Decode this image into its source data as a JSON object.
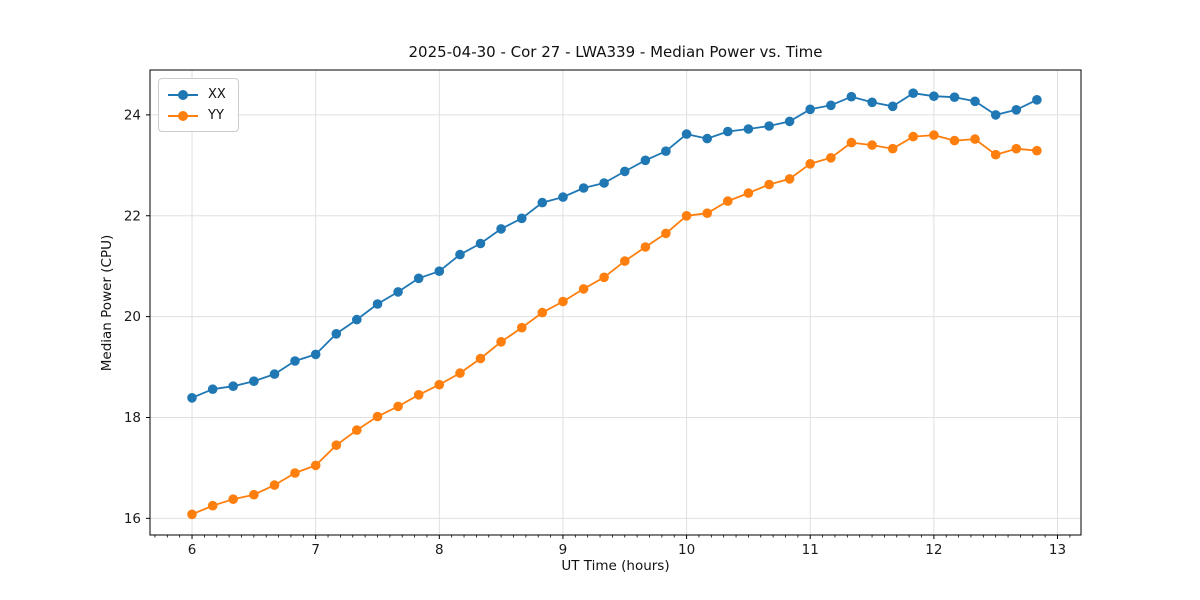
{
  "chart_data": {
    "type": "line",
    "title": "2025-04-30 - Cor 27 - LWA339 - Median Power vs. Time",
    "xlabel": "UT Time (hours)",
    "ylabel": "Median Power (CPU)",
    "xlim": [
      5.66,
      13.19
    ],
    "ylim": [
      15.67,
      24.89
    ],
    "xticks": [
      6,
      7,
      8,
      9,
      10,
      11,
      12,
      13
    ],
    "yticks": [
      16,
      18,
      20,
      22,
      24
    ],
    "minor_xtick_step": 0.1,
    "grid": true,
    "grid_color": "#e0e0e0",
    "legend_position": "upper left",
    "marker": "circle",
    "x": [
      6.0,
      6.167,
      6.333,
      6.5,
      6.667,
      6.833,
      7.0,
      7.167,
      7.333,
      7.5,
      7.667,
      7.833,
      8.0,
      8.167,
      8.333,
      8.5,
      8.667,
      8.833,
      9.0,
      9.167,
      9.333,
      9.5,
      9.667,
      9.833,
      10.0,
      10.167,
      10.333,
      10.5,
      10.667,
      10.833,
      11.0,
      11.167,
      11.333,
      11.5,
      11.667,
      11.833,
      12.0,
      12.167,
      12.333,
      12.5,
      12.667,
      12.833
    ],
    "series": [
      {
        "name": "XX",
        "color": "#1f77b4",
        "values": [
          18.39,
          18.56,
          18.62,
          18.72,
          18.86,
          19.12,
          19.25,
          19.66,
          19.94,
          20.25,
          20.49,
          20.76,
          20.9,
          21.23,
          21.45,
          21.74,
          21.95,
          22.26,
          22.37,
          22.55,
          22.65,
          22.88,
          23.1,
          23.28,
          23.62,
          23.53,
          23.67,
          23.72,
          23.78,
          23.87,
          24.11,
          24.19,
          24.36,
          24.25,
          24.17,
          24.43,
          24.37,
          24.35,
          24.27,
          24.0,
          24.1,
          24.3
        ]
      },
      {
        "name": "YY",
        "color": "#ff7f0e",
        "values": [
          16.08,
          16.25,
          16.38,
          16.47,
          16.66,
          16.9,
          17.05,
          17.45,
          17.75,
          18.02,
          18.22,
          18.45,
          18.65,
          18.88,
          19.17,
          19.5,
          19.78,
          20.08,
          20.3,
          20.55,
          20.78,
          21.1,
          21.38,
          21.65,
          22.0,
          22.05,
          22.29,
          22.45,
          22.62,
          22.73,
          23.03,
          23.15,
          23.45,
          23.4,
          23.33,
          23.57,
          23.6,
          23.49,
          23.52,
          23.21,
          23.33,
          23.29
        ]
      }
    ]
  }
}
